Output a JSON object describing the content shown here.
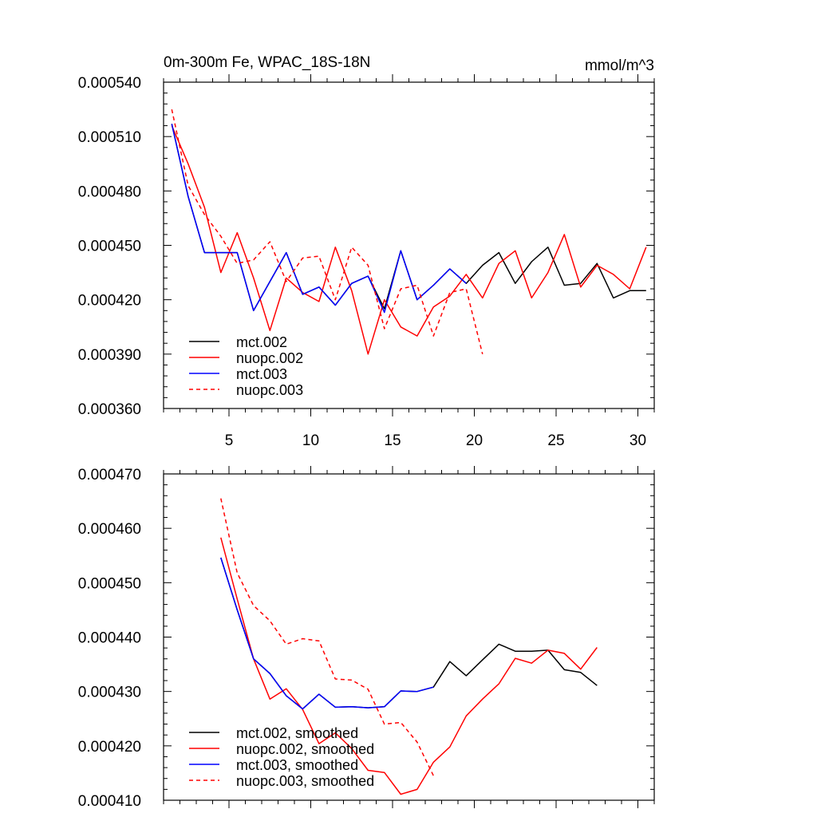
{
  "chart_data": [
    {
      "type": "line",
      "title": "0m-300m Fe, WPAC_18S-18N",
      "units": "mmol/m^3",
      "xlabel": "",
      "ylabel": "",
      "xlim": [
        1,
        31
      ],
      "ylim": [
        0.00036,
        0.00054
      ],
      "xticks": [
        5,
        10,
        15,
        20,
        25,
        30
      ],
      "xtick_labels": [
        "5",
        "10",
        "15",
        "20",
        "25",
        "30"
      ],
      "yticks": [
        0.00036,
        0.00039,
        0.00042,
        0.00045,
        0.00048,
        0.00051,
        0.00054
      ],
      "ytick_labels": [
        "0.000360",
        "0.000390",
        "0.000420",
        "0.000450",
        "0.000480",
        "0.000510",
        "0.000540"
      ],
      "grid": false,
      "legend_position": "bottom-left",
      "series": [
        {
          "name": "mct.002",
          "color": "#000000",
          "dash": "solid",
          "x": [
            1.5,
            2.5,
            3.5,
            4.5,
            5.5,
            6.5,
            7.5,
            8.5,
            9.5,
            10.5,
            11.5,
            12.5,
            13.5,
            14.5,
            15.5,
            16.5,
            17.5,
            18.5,
            19.5,
            20.5,
            21.5,
            22.5,
            23.5,
            24.5,
            25.5,
            26.5,
            27.5,
            28.5,
            29.5,
            30.5
          ],
          "values": [
            0.000517,
            0.000477,
            0.000446,
            0.000446,
            0.000446,
            0.000414,
            0.00043,
            0.000446,
            0.000423,
            0.000427,
            0.000417,
            0.000429,
            0.000433,
            0.000415,
            0.000447,
            0.00042,
            0.000428,
            0.000437,
            0.000429,
            0.000439,
            0.000446,
            0.000429,
            0.000441,
            0.000449,
            0.000428,
            0.000429,
            0.00044,
            0.000421,
            0.000425,
            0.000425
          ]
        },
        {
          "name": "nuopc.002",
          "color": "#ff0000",
          "dash": "solid",
          "x": [
            1.5,
            2.5,
            3.5,
            4.5,
            5.5,
            6.5,
            7.5,
            8.5,
            9.5,
            10.5,
            11.5,
            12.5,
            13.5,
            14.5,
            15.5,
            16.5,
            17.5,
            18.5,
            19.5,
            20.5,
            21.5,
            22.5,
            23.5,
            24.5,
            25.5,
            26.5,
            27.5,
            28.5,
            29.5,
            30.5
          ],
          "values": [
            0.000516,
            0.000495,
            0.000471,
            0.000435,
            0.000457,
            0.000432,
            0.000403,
            0.000432,
            0.000424,
            0.000419,
            0.000449,
            0.000425,
            0.00039,
            0.00042,
            0.000405,
            0.0004,
            0.000416,
            0.000422,
            0.000434,
            0.000421,
            0.00044,
            0.000447,
            0.000421,
            0.000435,
            0.000456,
            0.000427,
            0.000439,
            0.000434,
            0.000426,
            0.000449
          ]
        },
        {
          "name": "mct.003",
          "color": "#0000ff",
          "dash": "solid",
          "x": [
            1.5,
            2.5,
            3.5,
            4.5,
            5.5,
            6.5,
            7.5,
            8.5,
            9.5,
            10.5,
            11.5,
            12.5,
            13.5,
            14.5,
            15.5,
            16.5,
            17.5,
            18.5,
            19.5
          ],
          "values": [
            0.000517,
            0.000477,
            0.000446,
            0.000446,
            0.000446,
            0.000414,
            0.00043,
            0.000446,
            0.000423,
            0.000427,
            0.000417,
            0.000429,
            0.000433,
            0.000413,
            0.000447,
            0.00042,
            0.000428,
            0.000437,
            0.000429
          ]
        },
        {
          "name": "nuopc.003",
          "color": "#ff0000",
          "dash": "dashed",
          "x": [
            1.5,
            2.5,
            3.5,
            4.5,
            5.5,
            6.5,
            7.5,
            8.5,
            9.5,
            10.5,
            11.5,
            12.5,
            13.5,
            14.5,
            15.5,
            16.5,
            17.5,
            18.5,
            19.5,
            20.5
          ],
          "values": [
            0.000525,
            0.000483,
            0.000467,
            0.000455,
            0.00044,
            0.000442,
            0.000452,
            0.00043,
            0.000443,
            0.000444,
            0.00042,
            0.000449,
            0.000439,
            0.000404,
            0.000426,
            0.000428,
            0.0004,
            0.000424,
            0.000426,
            0.00039
          ]
        }
      ]
    },
    {
      "type": "line",
      "title": "",
      "units": "",
      "xlabel": "",
      "ylabel": "",
      "xlim": [
        1,
        31
      ],
      "ylim": [
        0.00041,
        0.00047
      ],
      "xticks": [
        5,
        10,
        15,
        20,
        25,
        30
      ],
      "xtick_labels": [],
      "yticks": [
        0.00041,
        0.00042,
        0.00043,
        0.00044,
        0.00045,
        0.00046,
        0.00047
      ],
      "ytick_labels": [
        "0.000410",
        "0.000420",
        "0.000430",
        "0.000440",
        "0.000450",
        "0.000460",
        "0.000470"
      ],
      "grid": false,
      "legend_position": "bottom-left",
      "series": [
        {
          "name": "mct.002, smoothed",
          "color": "#000000",
          "dash": "solid",
          "x": [
            4.5,
            5.5,
            6.5,
            7.5,
            8.5,
            9.5,
            10.5,
            11.5,
            12.5,
            13.5,
            14.5,
            15.5,
            16.5,
            17.5,
            18.5,
            19.5,
            20.5,
            21.5,
            22.5,
            23.5,
            24.5,
            25.5,
            26.5,
            27.5
          ],
          "values": [
            0.0004546,
            0.000445,
            0.000436,
            0.0004333,
            0.0004292,
            0.0004268,
            0.0004295,
            0.0004271,
            0.0004272,
            0.000427,
            0.0004272,
            0.0004301,
            0.00043,
            0.0004308,
            0.0004355,
            0.0004329,
            0.0004358,
            0.0004387,
            0.0004374,
            0.0004374,
            0.0004376,
            0.000434,
            0.0004335,
            0.0004311
          ]
        },
        {
          "name": "nuopc.002, smoothed",
          "color": "#ff0000",
          "dash": "solid",
          "x": [
            4.5,
            5.5,
            6.5,
            7.5,
            8.5,
            9.5,
            10.5,
            11.5,
            12.5,
            13.5,
            14.5,
            15.5,
            16.5,
            17.5,
            18.5,
            19.5,
            20.5,
            21.5,
            22.5,
            23.5,
            24.5,
            25.5,
            26.5,
            27.5
          ],
          "values": [
            0.0004583,
            0.000447,
            0.000436,
            0.0004286,
            0.0004305,
            0.0004267,
            0.0004204,
            0.0004224,
            0.0004195,
            0.0004155,
            0.0004151,
            0.0004111,
            0.000412,
            0.000417,
            0.0004198,
            0.0004255,
            0.0004286,
            0.0004314,
            0.0004361,
            0.0004352,
            0.0004376,
            0.000437,
            0.0004341,
            0.0004381
          ]
        },
        {
          "name": "mct.003, smoothed",
          "color": "#0000ff",
          "dash": "solid",
          "x": [
            4.5,
            5.5,
            6.5,
            7.5,
            8.5,
            9.5,
            10.5,
            11.5,
            12.5,
            13.5,
            14.5,
            15.5,
            16.5,
            17.5
          ],
          "values": [
            0.0004546,
            0.000445,
            0.000436,
            0.0004333,
            0.0004292,
            0.0004268,
            0.0004295,
            0.0004271,
            0.0004272,
            0.000427,
            0.0004272,
            0.0004301,
            0.00043,
            0.0004308
          ]
        },
        {
          "name": "nuopc.003, smoothed",
          "color": "#ff0000",
          "dash": "dashed",
          "x": [
            4.5,
            5.5,
            6.5,
            7.5,
            8.5,
            9.5,
            10.5,
            11.5,
            12.5,
            13.5,
            14.5,
            15.5,
            16.5,
            17.5
          ],
          "values": [
            0.0004655,
            0.0004518,
            0.0004458,
            0.000443,
            0.0004387,
            0.0004397,
            0.0004393,
            0.0004323,
            0.0004321,
            0.0004304,
            0.000424,
            0.0004243,
            0.0004207,
            0.0004145
          ]
        }
      ]
    }
  ]
}
